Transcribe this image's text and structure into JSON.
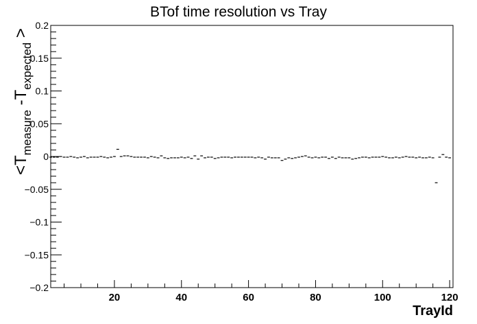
{
  "chart_data": {
    "type": "scatter",
    "title": "BTof time resolution vs Tray",
    "xlabel": "TrayId",
    "ylabel": {
      "prefix": "<T",
      "sub1": "measure",
      "mid": " -T",
      "sub2": "expected",
      "suffix": " >"
    },
    "xlim": [
      1,
      121
    ],
    "ylim": [
      -0.2,
      0.2
    ],
    "xticks": [
      20,
      40,
      60,
      80,
      100,
      120
    ],
    "xtick_labels": [
      "20",
      "40",
      "60",
      "80",
      "100",
      "120"
    ],
    "yticks": [
      -0.2,
      -0.15,
      -0.1,
      -0.05,
      0,
      0.05,
      0.1,
      0.15,
      0.2
    ],
    "ytick_labels": [
      "−0.2",
      "−0.15",
      "−0.1",
      "−0.05",
      "0",
      "0.05",
      "0.1",
      "0.15",
      "0.2"
    ],
    "x": [
      1,
      2,
      3,
      4,
      5,
      6,
      7,
      8,
      9,
      10,
      11,
      12,
      13,
      14,
      15,
      16,
      17,
      18,
      19,
      20,
      21,
      22,
      23,
      24,
      25,
      26,
      27,
      28,
      29,
      30,
      31,
      32,
      33,
      34,
      35,
      36,
      37,
      38,
      39,
      40,
      41,
      42,
      43,
      44,
      45,
      46,
      47,
      48,
      49,
      50,
      51,
      52,
      53,
      54,
      55,
      56,
      57,
      58,
      59,
      60,
      61,
      62,
      63,
      64,
      65,
      66,
      67,
      68,
      69,
      70,
      71,
      72,
      73,
      74,
      75,
      76,
      77,
      78,
      79,
      80,
      81,
      82,
      83,
      84,
      85,
      86,
      87,
      88,
      89,
      90,
      91,
      92,
      93,
      94,
      95,
      96,
      97,
      98,
      99,
      100,
      101,
      102,
      103,
      104,
      105,
      106,
      107,
      108,
      109,
      110,
      111,
      112,
      113,
      114,
      115,
      116,
      117,
      118,
      119,
      120
    ],
    "y": [
      -0.001,
      -0.001,
      -0.001,
      0,
      -0.001,
      -0.001,
      0,
      -0.001,
      -0.002,
      -0.001,
      0,
      -0.002,
      -0.001,
      -0.001,
      -0.001,
      0,
      -0.001,
      -0.002,
      -0.001,
      0,
      0.011,
      0,
      0.001,
      0.001,
      0,
      -0.001,
      -0.001,
      -0.001,
      -0.001,
      -0.002,
      0,
      -0.001,
      -0.002,
      0.001,
      -0.002,
      -0.003,
      -0.002,
      -0.002,
      -0.002,
      -0.001,
      -0.002,
      -0.001,
      -0.003,
      0.001,
      -0.004,
      0.001,
      -0.002,
      -0.001,
      -0.001,
      -0.003,
      -0.002,
      -0.001,
      -0.001,
      -0.001,
      -0.002,
      -0.001,
      -0.001,
      -0.001,
      -0.001,
      -0.001,
      -0.001,
      -0.002,
      -0.001,
      -0.002,
      -0.004,
      -0.001,
      -0.002,
      -0.002,
      -0.002,
      -0.006,
      -0.004,
      -0.002,
      -0.003,
      -0.002,
      -0.001,
      0,
      0.001,
      -0.001,
      -0.002,
      -0.001,
      -0.002,
      -0.001,
      -0.001,
      -0.003,
      -0.001,
      -0.003,
      -0.001,
      -0.002,
      -0.002,
      -0.002,
      -0.004,
      -0.003,
      -0.002,
      -0.001,
      -0.001,
      -0.002,
      -0.001,
      -0.001,
      -0.001,
      0,
      -0.001,
      -0.002,
      -0.002,
      -0.001,
      -0.002,
      -0.001,
      0,
      -0.001,
      -0.001,
      -0.002,
      -0.001,
      -0.002,
      -0.002,
      -0.001,
      -0.002,
      -0.04,
      -0.001,
      0.003,
      -0.001,
      -0.002
    ],
    "grid": false,
    "marker_color": "#000000"
  }
}
